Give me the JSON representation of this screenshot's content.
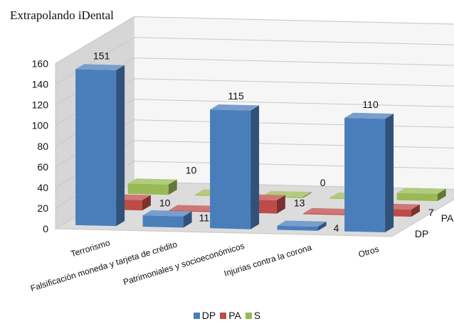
{
  "chart_data": {
    "type": "bar",
    "title": "Extrapolando iDental",
    "categories": [
      "Terrorismo",
      "Falsificación moneda y tarjeta de crédito",
      "Patrimoniales y socioeconómicos",
      "Injurias contra la corona",
      "Otros"
    ],
    "series": [
      {
        "name": "DP",
        "values": [
          151,
          11,
          115,
          4,
          110
        ],
        "color": "#4a7ebb"
      },
      {
        "name": "PA",
        "values": [
          10,
          1,
          13,
          1,
          7
        ],
        "color": "#be4b48"
      },
      {
        "name": "S",
        "values": [
          10,
          0,
          0,
          0,
          7
        ],
        "color": "#98b954"
      }
    ],
    "depth_labels": [
      "DP",
      "PA",
      "S"
    ],
    "y_ticks": [
      "0",
      "20",
      "40",
      "60",
      "80",
      "100",
      "120",
      "140",
      "160"
    ],
    "ylim": [
      0,
      160
    ],
    "xlabel": "",
    "ylabel": "",
    "grid": true,
    "legend_position": "bottom"
  }
}
